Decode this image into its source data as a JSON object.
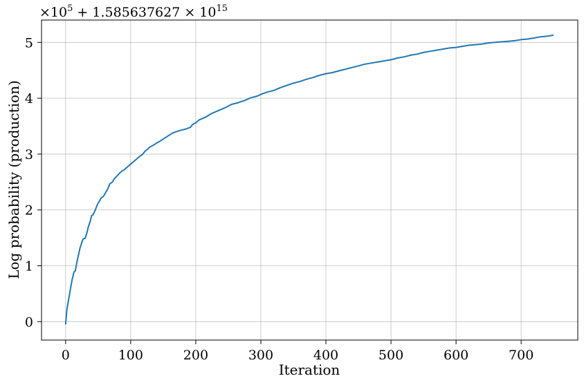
{
  "chart_data": {
    "type": "line",
    "title": "",
    "xlabel": "Iteration",
    "ylabel": "Log probability (production)",
    "offset_label": {
      "prefix": "×10",
      "prefix_exp": "5",
      "middle": " + 1.585637627 × 10",
      "suffix_exp": "15"
    },
    "xlim": [
      -37,
      787
    ],
    "ylim": [
      -0.33,
      5.4
    ],
    "xticks": [
      0,
      100,
      200,
      300,
      400,
      500,
      600,
      700
    ],
    "yticks": [
      0,
      1,
      2,
      3,
      4,
      5
    ],
    "xtick_labels": [
      "0",
      "100",
      "200",
      "300",
      "400",
      "500",
      "600",
      "700"
    ],
    "ytick_labels": [
      "0",
      "1",
      "2",
      "3",
      "4",
      "5"
    ],
    "grid": true,
    "series": [
      {
        "color": "#1f77b4",
        "x": [
          0,
          2,
          5,
          8,
          10,
          13,
          15,
          17,
          20,
          22,
          25,
          27,
          30,
          33,
          35,
          38,
          40,
          42,
          45,
          48,
          50,
          53,
          55,
          58,
          62,
          65,
          68,
          72,
          75,
          80,
          83,
          87,
          90,
          95,
          100,
          103,
          108,
          112,
          115,
          118,
          122,
          125,
          130,
          135,
          140,
          145,
          150,
          158,
          165,
          170,
          178,
          185,
          192,
          195,
          200,
          205,
          215,
          225,
          235,
          245,
          255,
          265,
          275,
          285,
          295,
          300,
          310,
          320,
          330,
          340,
          350,
          360,
          370,
          380,
          390,
          400,
          410,
          420,
          430,
          440,
          450,
          460,
          470,
          480,
          490,
          500,
          510,
          520,
          530,
          540,
          550,
          560,
          570,
          580,
          590,
          600,
          610,
          620,
          630,
          640,
          650,
          660,
          670,
          680,
          690,
          700,
          710,
          720,
          730,
          740,
          750
        ],
        "y": [
          -0.05,
          0.22,
          0.42,
          0.62,
          0.75,
          0.89,
          0.91,
          1.05,
          1.2,
          1.31,
          1.42,
          1.48,
          1.49,
          1.6,
          1.7,
          1.8,
          1.9,
          1.91,
          1.98,
          2.07,
          2.12,
          2.18,
          2.22,
          2.24,
          2.32,
          2.38,
          2.47,
          2.5,
          2.56,
          2.62,
          2.66,
          2.7,
          2.72,
          2.77,
          2.82,
          2.85,
          2.9,
          2.94,
          2.97,
          2.99,
          3.05,
          3.08,
          3.13,
          3.16,
          3.2,
          3.23,
          3.27,
          3.33,
          3.38,
          3.4,
          3.43,
          3.45,
          3.48,
          3.53,
          3.56,
          3.61,
          3.66,
          3.73,
          3.78,
          3.83,
          3.89,
          3.92,
          3.96,
          4.01,
          4.04,
          4.07,
          4.11,
          4.14,
          4.19,
          4.23,
          4.27,
          4.3,
          4.34,
          4.37,
          4.41,
          4.44,
          4.46,
          4.49,
          4.52,
          4.55,
          4.58,
          4.61,
          4.63,
          4.65,
          4.67,
          4.69,
          4.72,
          4.74,
          4.77,
          4.79,
          4.82,
          4.84,
          4.86,
          4.88,
          4.9,
          4.91,
          4.93,
          4.95,
          4.96,
          4.97,
          4.99,
          5.0,
          5.01,
          5.02,
          5.03,
          5.05,
          5.06,
          5.08,
          5.1,
          5.11,
          5.13
        ]
      }
    ]
  }
}
